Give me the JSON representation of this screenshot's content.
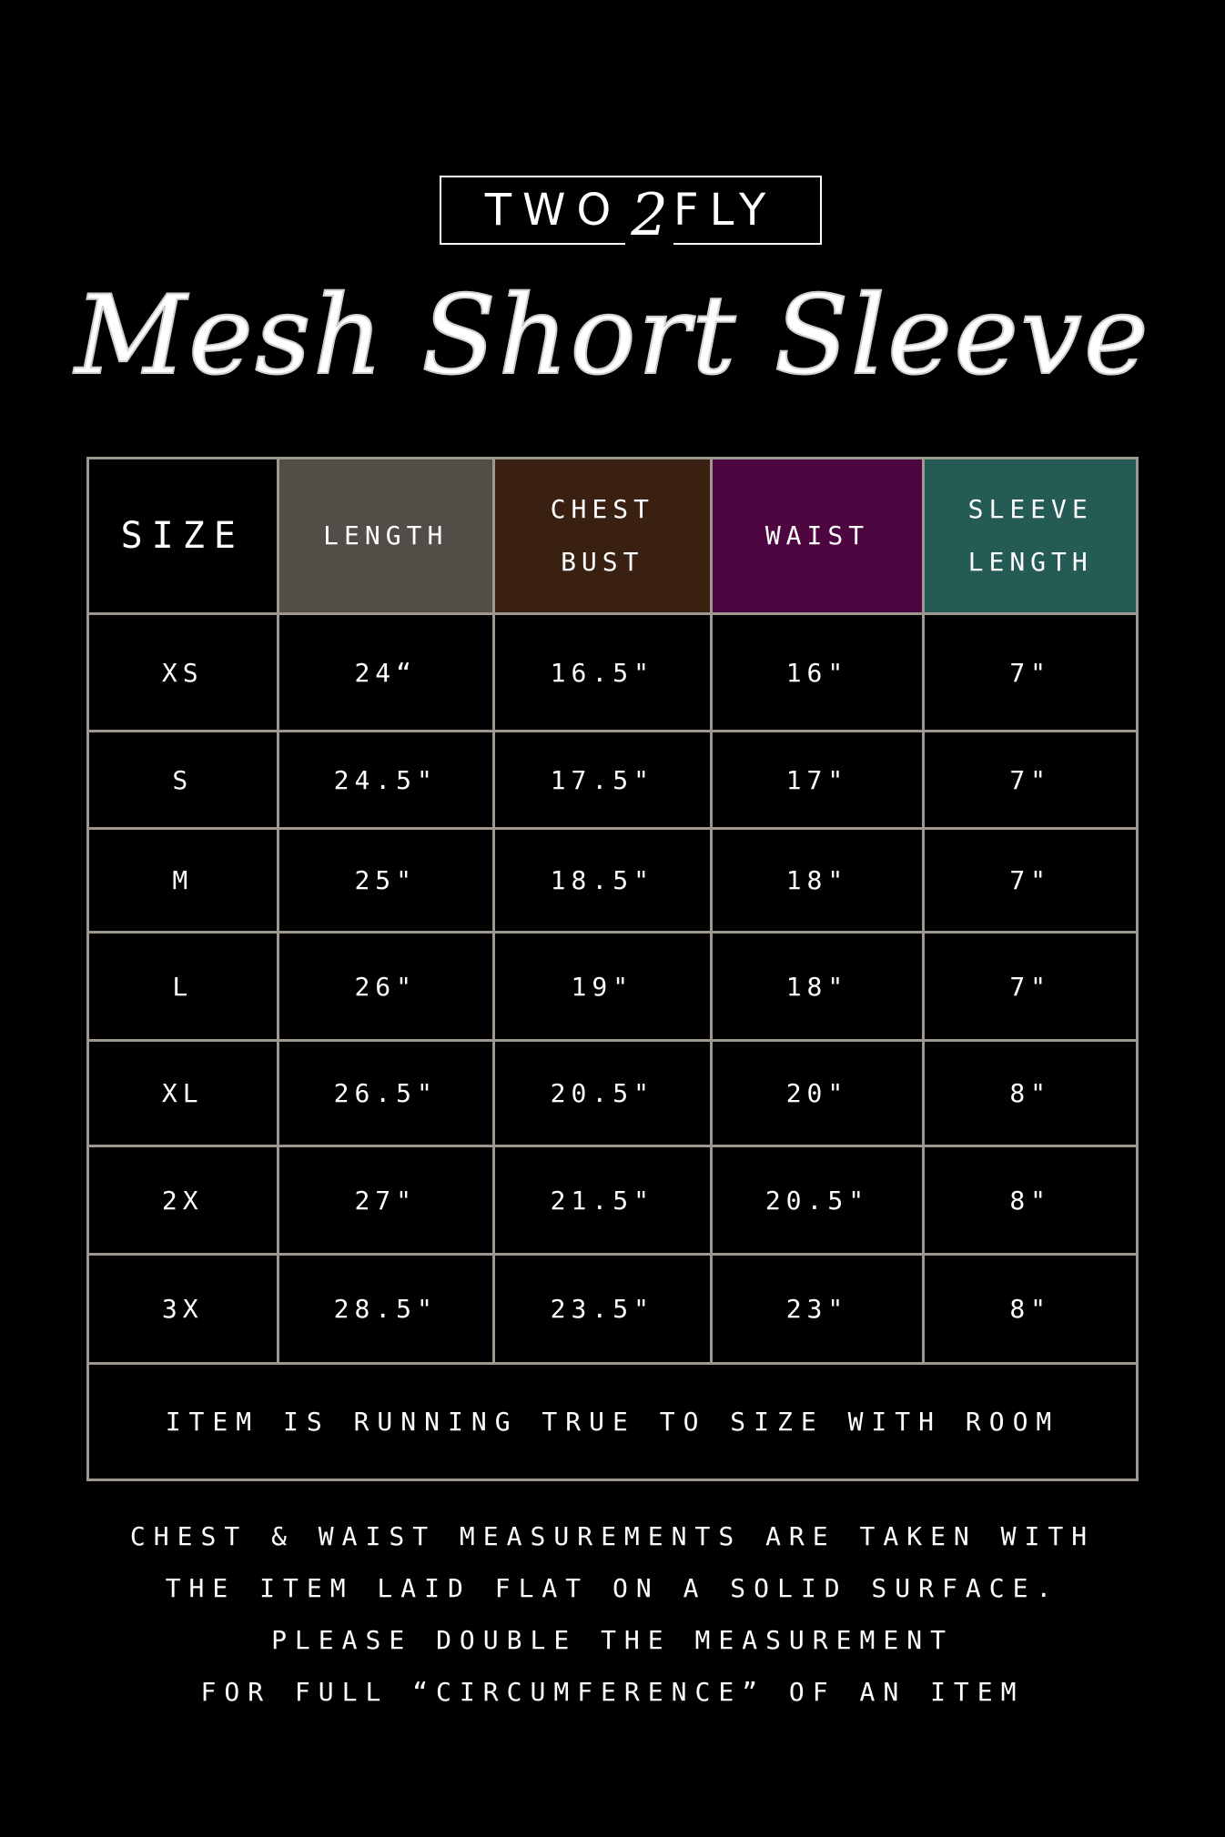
{
  "brand": {
    "left": "TWO",
    "middle": "2",
    "right": "FLY"
  },
  "title": "Mesh Short Sleeve",
  "table": {
    "headers": [
      {
        "lines": [
          "SIZE"
        ],
        "color": "#000000"
      },
      {
        "lines": [
          "LENGTH"
        ],
        "color": "#524d47"
      },
      {
        "lines": [
          "CHEST",
          "BUST"
        ],
        "color": "#3a2010"
      },
      {
        "lines": [
          "WAIST"
        ],
        "color": "#4e0640"
      },
      {
        "lines": [
          "SLEEVE",
          "LENGTH"
        ],
        "color": "#245b55"
      }
    ],
    "rows": [
      [
        "XS",
        "24“",
        "16.5\"",
        "16\"",
        "7\""
      ],
      [
        "S",
        "24.5\"",
        "17.5\"",
        "17\"",
        "7\""
      ],
      [
        "M",
        "25\"",
        "18.5\"",
        "18\"",
        "7\""
      ],
      [
        "L",
        "26\"",
        "19\"",
        "18\"",
        "7\""
      ],
      [
        "XL",
        "26.5\"",
        "20.5\"",
        "20\"",
        "8\""
      ],
      [
        "2X",
        "27\"",
        "21.5\"",
        "20.5\"",
        "8\""
      ],
      [
        "3X",
        "28.5\"",
        "23.5\"",
        "23\"",
        "8\""
      ]
    ],
    "fit_note": "ITEM IS RUNNING TRUE TO SIZE WITH ROOM"
  },
  "notes": [
    "CHEST & WAIST MEASUREMENTS ARE TAKEN WITH",
    "THE ITEM LAID FLAT ON A SOLID SURFACE.",
    "PLEASE DOUBLE THE MEASUREMENT",
    "FOR FULL “CIRCUMFERENCE” OF AN ITEM"
  ],
  "border_color": "#9e9890"
}
